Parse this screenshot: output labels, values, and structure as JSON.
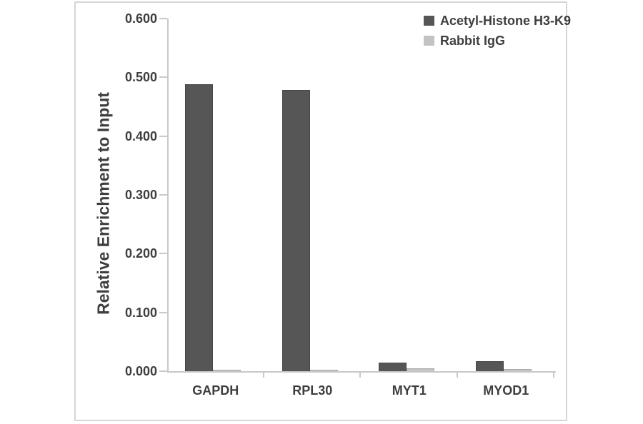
{
  "chart_data": {
    "type": "bar",
    "title": "",
    "categories": [
      "GAPDH",
      "RPL30",
      "MYT1",
      "MYOD1"
    ],
    "series": [
      {
        "name": "Acetyl-Histone H3-K9",
        "color": "#565656",
        "border_color": "#454545",
        "values": [
          0.488,
          0.478,
          0.015,
          0.017
        ]
      },
      {
        "name": "Rabbit IgG",
        "color": "#c3c3c3",
        "border_color": "#a8a8a8",
        "values": [
          0.002,
          0.003,
          0.005,
          0.004
        ]
      }
    ],
    "xlabel": "",
    "ylabel": "Relative Enrichment to Input",
    "ylim": [
      0,
      0.6
    ],
    "ytick_labels": [
      "0.000",
      "0.100",
      "0.200",
      "0.300",
      "0.400",
      "0.500",
      "0.600"
    ],
    "grid": false,
    "legend_position": "top-right",
    "axis_color": "#c8c8c8",
    "text_color": "#3e3e3e"
  }
}
